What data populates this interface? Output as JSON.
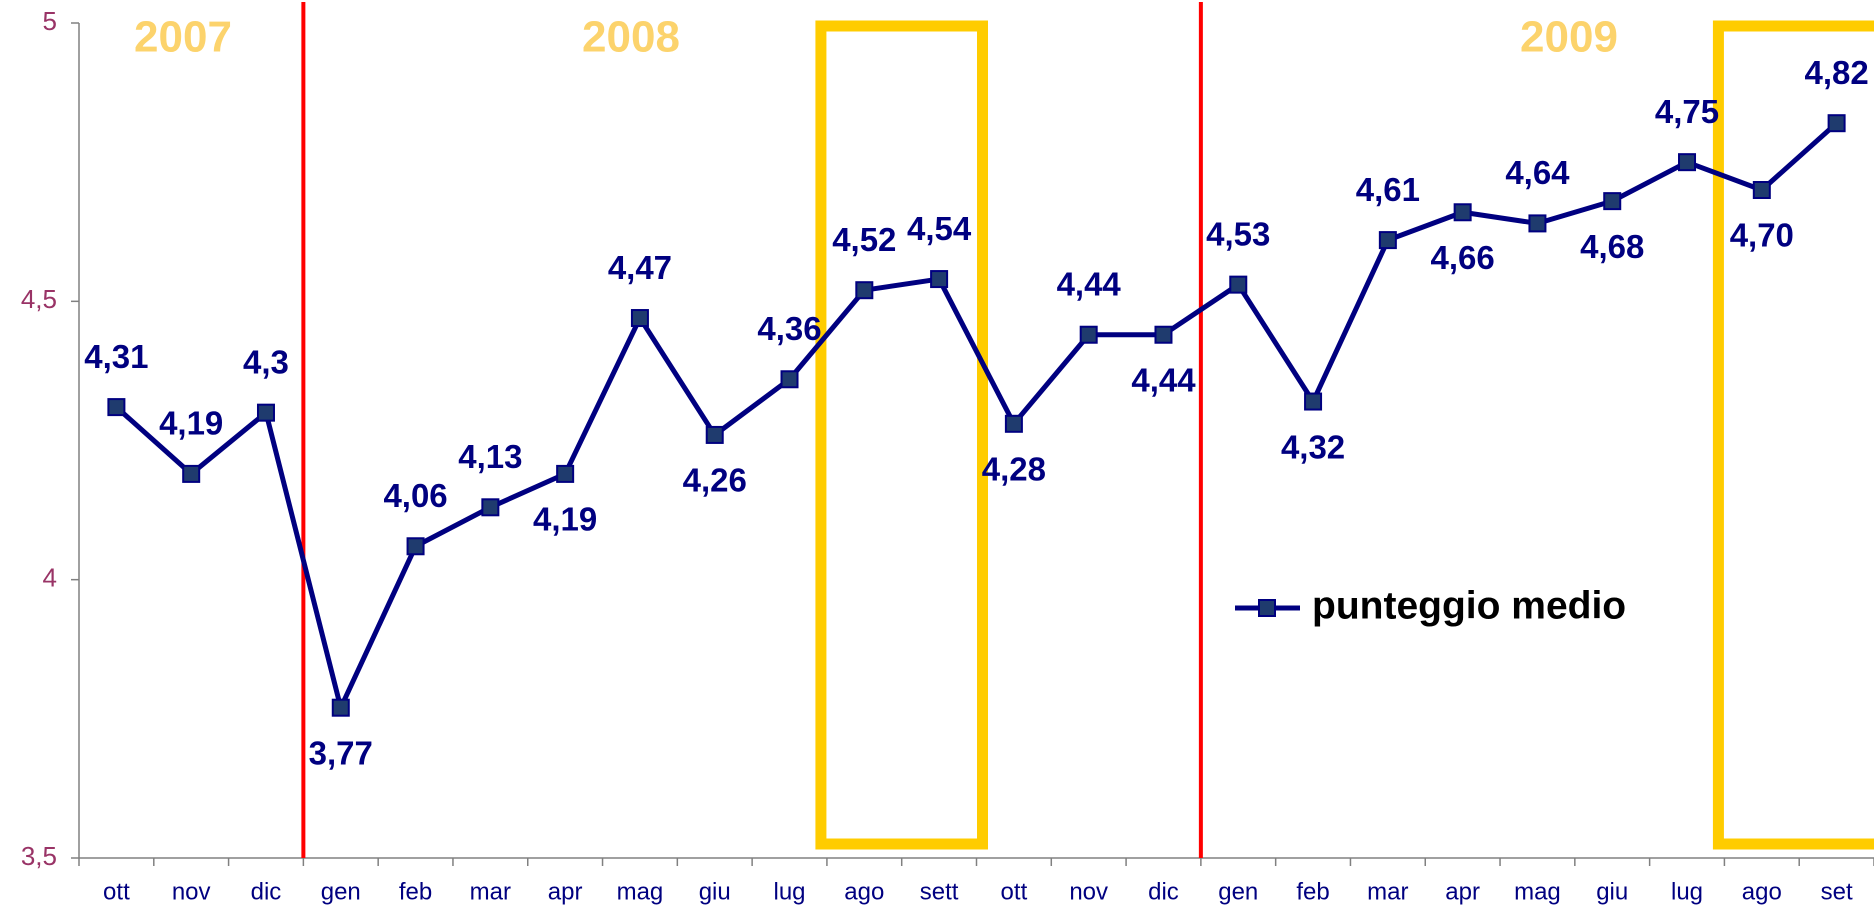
{
  "chart_data": {
    "type": "line",
    "categories": [
      "ott",
      "nov",
      "dic",
      "gen",
      "feb",
      "mar",
      "apr",
      "mag",
      "giu",
      "lug",
      "ago",
      "sett",
      "ott",
      "nov",
      "dic",
      "gen",
      "feb",
      "mar",
      "apr",
      "mag",
      "giu",
      "lug",
      "ago",
      "set"
    ],
    "series": [
      {
        "name": "punteggio medio",
        "color": "#000080",
        "values": [
          4.31,
          4.19,
          4.3,
          3.77,
          4.06,
          4.13,
          4.19,
          4.47,
          4.26,
          4.36,
          4.52,
          4.54,
          4.28,
          4.44,
          4.44,
          4.53,
          4.32,
          4.61,
          4.66,
          4.64,
          4.68,
          4.75,
          4.7,
          4.82
        ],
        "value_labels": [
          "4,31",
          "4,19",
          "4,3",
          "3,77",
          "4,06",
          "4,13",
          "4,19",
          "4,47",
          "4,26",
          "4,36",
          "4,52",
          "4,54",
          "4,28",
          "4,44",
          "4,44",
          "4,53",
          "4,32",
          "4,61",
          "4,66",
          "4,64",
          "4,68",
          "4,75",
          "4,70",
          "4,82"
        ]
      }
    ],
    "ylim": [
      3.5,
      5
    ],
    "yticks": [
      {
        "value": 3.5,
        "label": "3,5"
      },
      4,
      {
        "value": 4.5,
        "label": "4,5"
      },
      5
    ],
    "annotations": [
      "2007",
      "2008",
      "2009"
    ],
    "legend": "right"
  }
}
